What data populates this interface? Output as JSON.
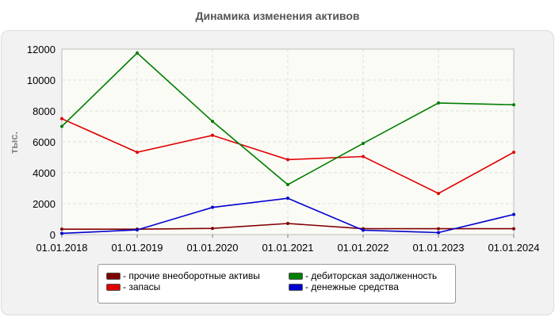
{
  "chart_data": {
    "type": "line",
    "title": "Динамика изменения активов",
    "ylabel": "тыс.",
    "xlabel": "",
    "categories": [
      "01.01.2018",
      "01.01.2019",
      "01.01.2020",
      "01.01.2021",
      "01.01.2022",
      "01.01.2023",
      "01.01.2024"
    ],
    "ylim": [
      0,
      12000
    ],
    "yticks": [
      "0",
      "2000",
      "4000",
      "6000",
      "8000",
      "10000",
      "12000"
    ],
    "grid": true,
    "legend_position": "bottom",
    "series": [
      {
        "name": "- прочие внеоборотные активы",
        "color": "#7f0000",
        "values": [
          350,
          350,
          400,
          720,
          380,
          380,
          380
        ]
      },
      {
        "name": "- запасы",
        "color": "#e00000",
        "values": [
          7500,
          5330,
          6420,
          4850,
          5050,
          2660,
          5330
        ]
      },
      {
        "name": "- дебиторская задолженность",
        "color": "#007f00",
        "values": [
          7000,
          11750,
          7330,
          3230,
          5900,
          8520,
          8400
        ]
      },
      {
        "name": "- денежные средства",
        "color": "#0000d0",
        "values": [
          80,
          300,
          1760,
          2350,
          280,
          130,
          1300
        ]
      }
    ]
  }
}
